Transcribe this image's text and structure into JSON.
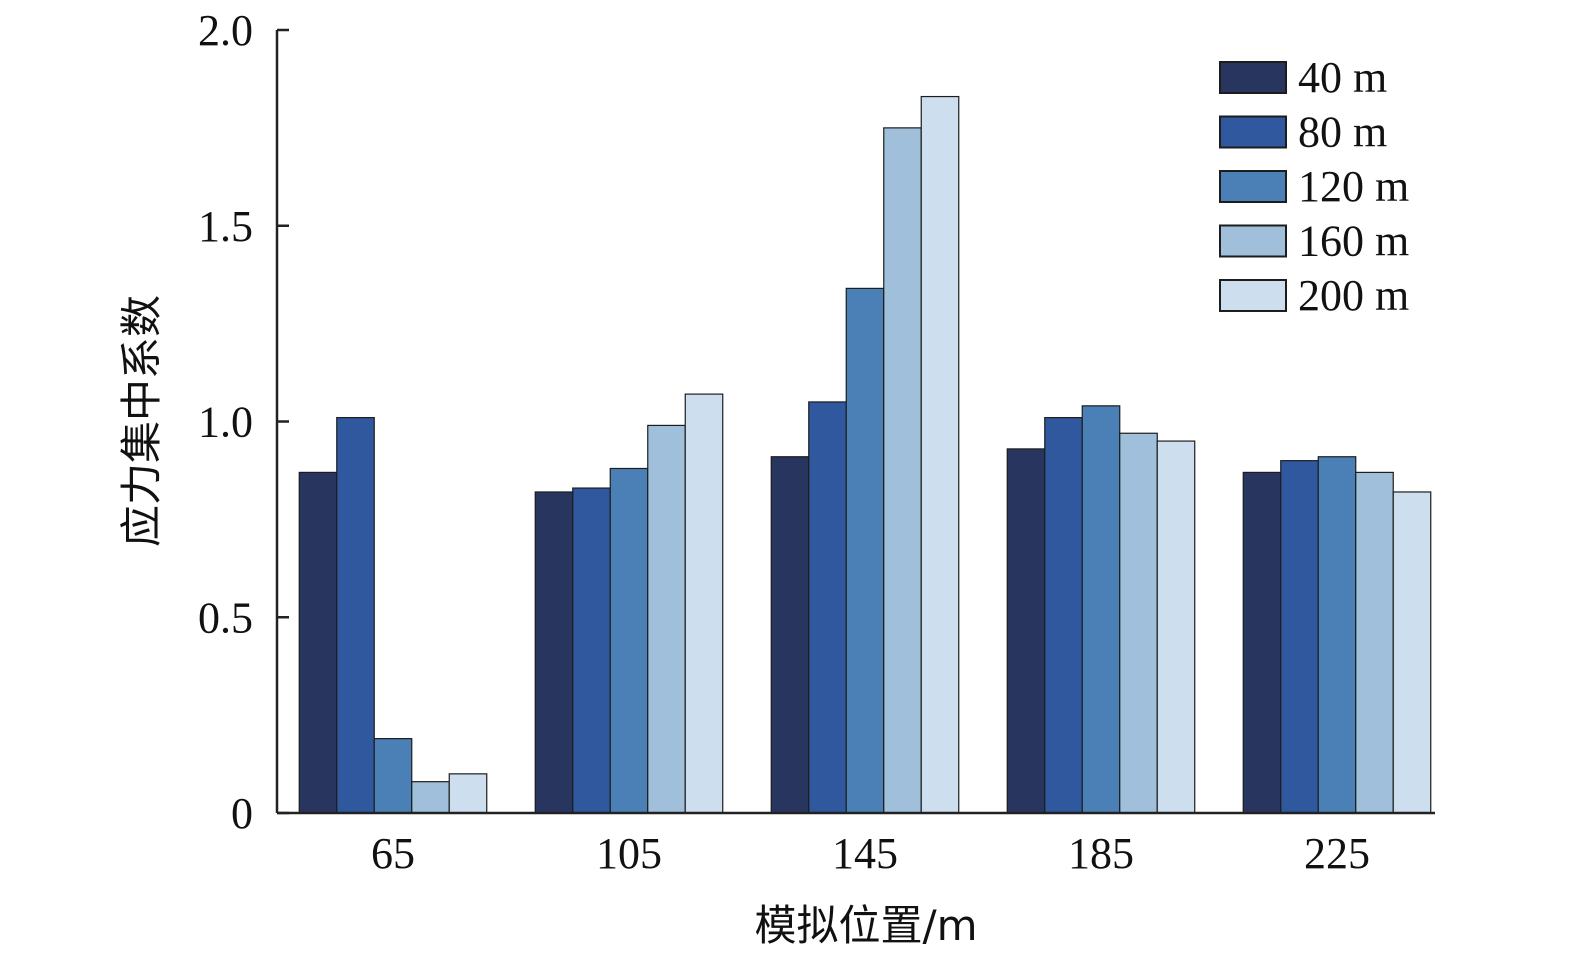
{
  "chart_data": {
    "type": "bar",
    "categories": [
      "65",
      "105",
      "145",
      "185",
      "225"
    ],
    "series": [
      {
        "name": "40 m",
        "color": "#27355f",
        "values": [
          0.87,
          0.82,
          0.91,
          0.93,
          0.87
        ]
      },
      {
        "name": "80 m",
        "color": "#2f589f",
        "values": [
          1.01,
          0.83,
          1.05,
          1.01,
          0.9
        ]
      },
      {
        "name": "120 m",
        "color": "#4a80b6",
        "values": [
          0.19,
          0.88,
          1.34,
          1.04,
          0.91
        ]
      },
      {
        "name": "160 m",
        "color": "#a0bfda",
        "values": [
          0.08,
          0.99,
          1.75,
          0.97,
          0.87
        ]
      },
      {
        "name": "200 m",
        "color": "#cddfee",
        "values": [
          0.1,
          1.07,
          1.83,
          0.95,
          0.82
        ]
      }
    ],
    "xlabel": "模拟位置/m",
    "ylabel": "应力集中系数",
    "ylim": [
      0,
      2.0
    ],
    "yticks": [
      "0",
      "0.5",
      "1.0",
      "1.5",
      "2.0"
    ],
    "legend_position": "top-right",
    "grid": false
  }
}
